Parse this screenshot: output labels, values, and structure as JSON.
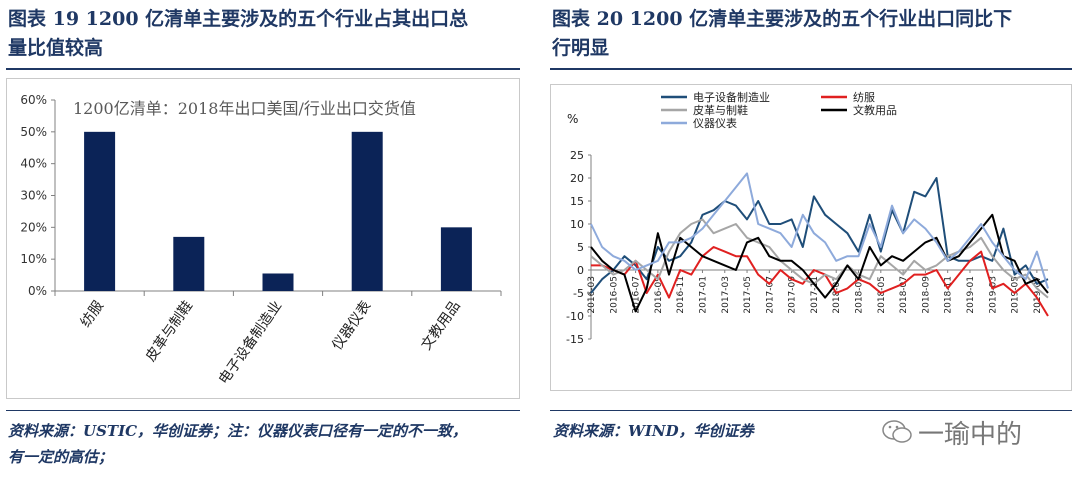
{
  "left": {
    "title_line1": "图表 19   1200 亿清单主要涉及的五个行业占其出口总",
    "title_line2": "量比值较高",
    "source_line1": "资料来源：USTIC，华创证券；注：仪器仪表口径有一定的不一致，",
    "source_line2": "有一定的高估；"
  },
  "right": {
    "title_line1": "图表 20    1200 亿清单主要涉及的五个行业出口同比下",
    "title_line2": "行明显",
    "source": "资料来源：WIND，华创证券"
  },
  "watermark": "一瑜中的",
  "colors": {
    "navy": "#0b2357",
    "title": "#1f3864",
    "red": "#e02020",
    "gray": "#a6a6a6",
    "black": "#000000",
    "blue": "#1f4e79",
    "lightblue": "#8eaadb"
  },
  "chart_data": [
    {
      "type": "bar",
      "title": "1200亿清单：2018年出口美国/行业出口交货值",
      "categories": [
        "纺服",
        "皮革与制鞋",
        "电子设备制造业",
        "仪器仪表",
        "文教用品"
      ],
      "values": [
        50,
        17,
        5.5,
        50,
        20
      ],
      "yticks": [
        "0%",
        "10%",
        "20%",
        "30%",
        "40%",
        "50%",
        "60%"
      ],
      "ylim": [
        0,
        60
      ],
      "grid": false
    },
    {
      "type": "line",
      "ylabel": "%",
      "ylim": [
        -15,
        25
      ],
      "yticks": [
        "25",
        "20",
        "15",
        "10",
        "5",
        "0",
        "-5",
        "-10",
        "-15"
      ],
      "x": [
        "2016-03",
        "2016-04",
        "2016-05",
        "2016-06",
        "2016-07",
        "2016-08",
        "2016-09",
        "2016-10",
        "2016-11",
        "2016-12",
        "2017-01",
        "2017-02",
        "2017-03",
        "2017-04",
        "2017-05",
        "2017-06",
        "2017-07",
        "2017-08",
        "2017-09",
        "2017-10",
        "2017-11",
        "2017-12",
        "2018-01",
        "2018-02",
        "2018-03",
        "2018-04",
        "2018-05",
        "2018-06",
        "2018-07",
        "2018-08",
        "2018-09",
        "2018-10",
        "2018-11",
        "2018-12",
        "2019-01",
        "2019-02",
        "2019-03",
        "2019-04",
        "2019-05",
        "2019-06",
        "2019-07",
        "2019-08"
      ],
      "xtick_labels": [
        "2016-03",
        "2016-05",
        "2016-07",
        "2016-09",
        "2016-11",
        "2017-01",
        "2017-03",
        "2017-05",
        "2017-07",
        "2017-09",
        "2017-11",
        "2018-01",
        "2018-03",
        "2018-05",
        "2018-07",
        "2018-09",
        "2018-11",
        "2019-01",
        "2019-03",
        "2019-05",
        "2019-07",
        "2019-09"
      ],
      "legend": "top",
      "series": [
        {
          "name": "电子设备制造业",
          "color": "#1f4e79",
          "values": [
            -5,
            -2,
            0,
            3,
            1,
            -2,
            5,
            2,
            3,
            6,
            12,
            13,
            15,
            14,
            11,
            15,
            10,
            10,
            11,
            5,
            16,
            12,
            10,
            8,
            4,
            12,
            4,
            13,
            8,
            17,
            16,
            20,
            3,
            2,
            2,
            3,
            2,
            9,
            -1,
            1,
            -3,
            -2
          ]
        },
        {
          "name": "纺服",
          "color": "#e02020",
          "values": [
            1,
            1,
            0,
            -1,
            2,
            -5,
            -1,
            -6,
            0,
            -1,
            3,
            5,
            4,
            3,
            3,
            -1,
            -3,
            0,
            -2,
            -3,
            0,
            -1,
            -5,
            -4,
            -2,
            -3,
            -5,
            -4,
            -3,
            -1,
            -1,
            0,
            -4,
            -1,
            2,
            4,
            -4,
            -3,
            -5,
            -3,
            -6,
            -10
          ]
        },
        {
          "name": "皮革与制鞋",
          "color": "#a6a6a6",
          "values": [
            3,
            1,
            -1,
            0,
            2,
            0,
            -2,
            4,
            8,
            10,
            11,
            8,
            9,
            10,
            7,
            6,
            5,
            2,
            0,
            -2,
            -3,
            -1,
            -2,
            1,
            -1,
            -2,
            3,
            1,
            -1,
            2,
            0,
            1,
            3,
            4,
            5,
            7,
            3,
            0,
            -2,
            -1,
            -4,
            -6
          ]
        },
        {
          "name": "文教用品",
          "color": "#000000",
          "values": [
            5,
            2,
            0,
            -1,
            -9,
            -4,
            8,
            -1,
            7,
            5,
            3,
            2,
            1,
            0,
            6,
            7,
            3,
            2,
            2,
            0,
            -3,
            -6,
            -3,
            1,
            -2,
            5,
            1,
            3,
            2,
            4,
            6,
            7,
            2,
            3,
            6,
            9,
            12,
            3,
            2,
            -3,
            -2,
            -5
          ]
        },
        {
          "name": "仪器仪表",
          "color": "#8eaadb",
          "values": [
            10,
            5,
            3,
            2,
            0,
            1,
            2,
            6,
            6,
            7,
            9,
            12,
            15,
            18,
            21,
            10,
            9,
            8,
            5,
            12,
            8,
            6,
            2,
            3,
            3,
            10,
            5,
            14,
            8,
            11,
            9,
            6,
            2,
            4,
            7,
            10,
            6,
            3,
            0,
            -2,
            4,
            -4
          ]
        }
      ]
    }
  ]
}
